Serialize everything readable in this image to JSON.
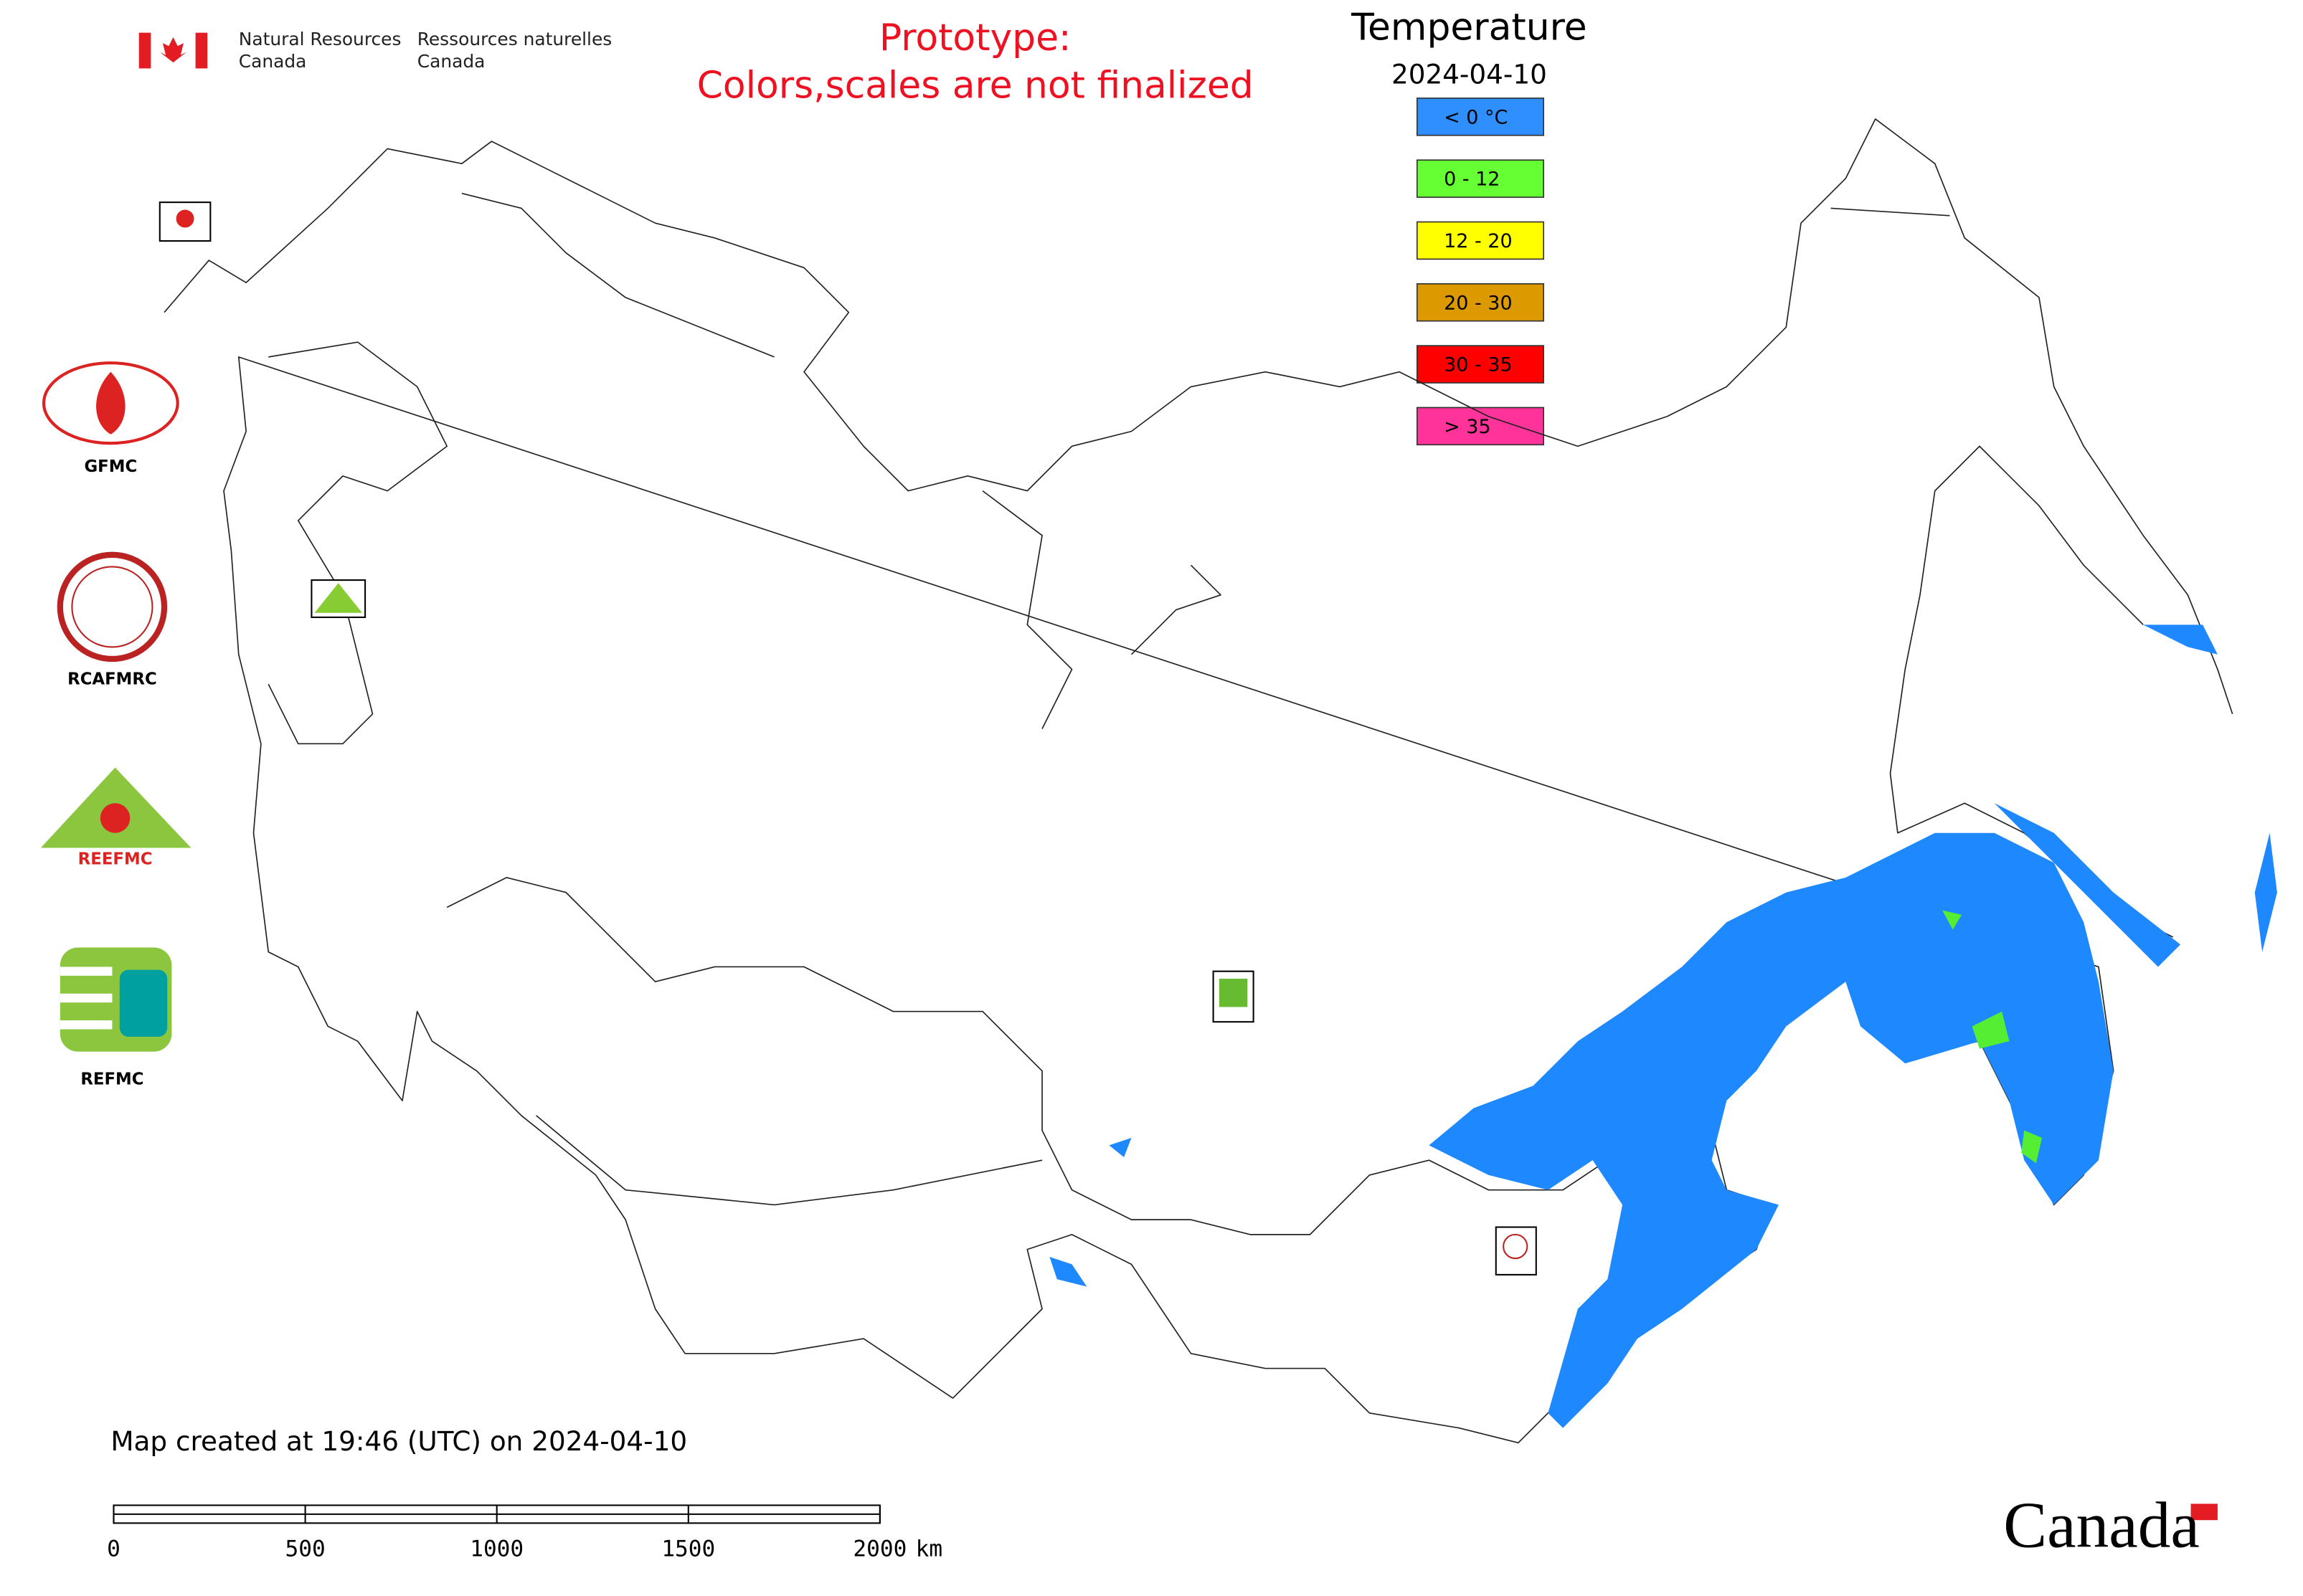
{
  "header": {
    "agency_en": [
      "Natural Resources",
      "Canada"
    ],
    "agency_fr": [
      "Ressources naturelles",
      "Canada"
    ],
    "notice": [
      "Prototype:",
      "Colors,scales are not finalized"
    ]
  },
  "legend": {
    "title": "Temperature",
    "date": "2024-04-10",
    "items": [
      {
        "label": "< 0 °C",
        "color": "#2f8fff"
      },
      {
        "label": "0 - 12",
        "color": "#66ff33"
      },
      {
        "label": "12 - 20",
        "color": "#ffff00"
      },
      {
        "label": "20 - 30",
        "color": "#dd9900"
      },
      {
        "label": "30 - 35",
        "color": "#ff0000"
      },
      {
        "label": "> 35",
        "color": "#ff3399"
      }
    ]
  },
  "logos": [
    "GFMC",
    "RCAFMRC",
    "REEFMC",
    "REFMC"
  ],
  "footer": {
    "created": "Map created at 19:46 (UTC) on 2024-04-10",
    "wordmark": "Canada"
  },
  "scale_bar": {
    "ticks": [
      0,
      500,
      1000,
      1500,
      2000
    ],
    "unit": "km"
  }
}
